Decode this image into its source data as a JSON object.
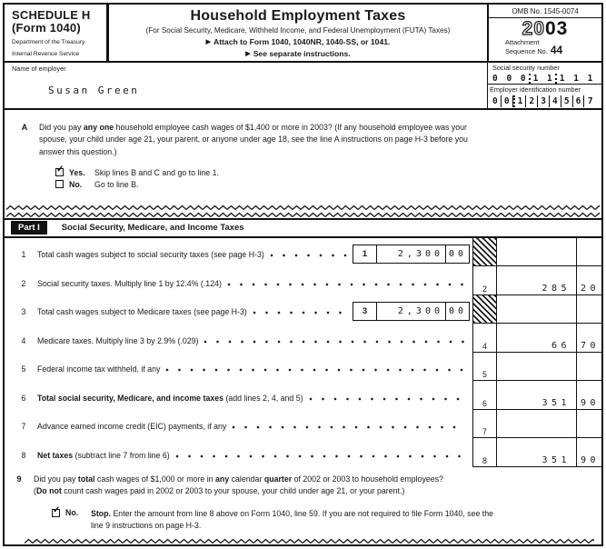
{
  "header": {
    "schedule": "SCHEDULE H",
    "form": "(Form 1040)",
    "dept1": "Department of the Treasury",
    "dept2": "Internal Revenue Service",
    "title": "Household Employment Taxes",
    "subtitle": "(For Social Security, Medicare, Withheld Income, and Federal Unemployment (FUTA) Taxes)",
    "arrow": "▶",
    "attach": "Attach to Form 1040, 1040NR, 1040-SS, or 1041.",
    "see": "See separate instructions.",
    "omb": "OMB No. 1545-0074",
    "year_outline": "20",
    "year_bold": "03",
    "attachment": "Attachment",
    "sequence": "Sequence No.",
    "sequence_no": "44"
  },
  "employer": {
    "name_label": "Name of employer",
    "name": "Susan Green",
    "ssn_label": "Social security number",
    "ssn_groups": [
      "0 0 0",
      "1 1",
      "1 1 1 1"
    ],
    "ein_label": "Employer identification number",
    "ein_groups": [
      [
        "0",
        "0"
      ],
      [
        "1",
        "2",
        "3",
        "4",
        "5",
        "6",
        "7"
      ]
    ]
  },
  "question_a": {
    "letter": "A",
    "text": [
      {
        "t": "Did you pay "
      },
      {
        "t": "any one",
        "b": true
      },
      {
        "t": " household employee cash wages of $1,400 or more in 2003? (If any household employee was your"
      },
      {
        "br": true
      },
      {
        "t": "spouse, your child under age 21, your parent, or anyone under age 18, see the line A instructions on page H-3 before you"
      },
      {
        "br": true
      },
      {
        "t": "answer this question.)"
      }
    ],
    "options": [
      {
        "checked": true,
        "label": "Yes.",
        "text": "Skip lines B and C and go to line 1."
      },
      {
        "checked": false,
        "label": "No.",
        "text": "Go to line B."
      }
    ]
  },
  "part1": {
    "label": "Part I",
    "title": "Social Security, Medicare, and Income Taxes",
    "rows": [
      {
        "num": "1",
        "desc": [
          {
            "t": "Total cash wages subject to social security taxes (see page H-3)"
          }
        ],
        "inline": {
          "num": "1",
          "amount": "2,300",
          "cents": "00"
        },
        "right": {
          "hatch": true,
          "num": "",
          "amount": "",
          "cents": ""
        }
      },
      {
        "num": "2",
        "desc": [
          {
            "t": "Social security taxes. Multiply line 1 by 12.4% (.124)"
          }
        ],
        "right": {
          "hatch": false,
          "num": "2",
          "amount": "285",
          "cents": "20"
        }
      },
      {
        "num": "3",
        "desc": [
          {
            "t": "Total cash wages subject to Medicare taxes (see page H-3)"
          }
        ],
        "inline": {
          "num": "3",
          "amount": "2,300",
          "cents": "00"
        },
        "right": {
          "hatch": true,
          "num": "",
          "amount": "",
          "cents": ""
        }
      },
      {
        "num": "4",
        "desc": [
          {
            "t": "Medicare taxes. Multiply line 3 by 2.9% (.029)"
          }
        ],
        "right": {
          "hatch": false,
          "num": "4",
          "amount": "66",
          "cents": "70"
        }
      },
      {
        "num": "5",
        "desc": [
          {
            "t": "Federal income tax withheld, if any"
          }
        ],
        "right": {
          "hatch": false,
          "num": "5",
          "amount": "",
          "cents": ""
        }
      },
      {
        "num": "6",
        "desc": [
          {
            "t": "Total social security, Medicare, and income taxes",
            "b": true
          },
          {
            "t": " (add lines 2, 4, and 5)"
          }
        ],
        "right": {
          "hatch": false,
          "num": "6",
          "amount": "351",
          "cents": "90"
        }
      },
      {
        "num": "7",
        "desc": [
          {
            "t": "Advance earned income credit (EIC) payments, if any"
          }
        ],
        "right": {
          "hatch": false,
          "num": "7",
          "amount": "",
          "cents": ""
        }
      },
      {
        "num": "8",
        "desc": [
          {
            "t": "Net taxes",
            "b": true
          },
          {
            "t": " (subtract line 7 from line 6)"
          }
        ],
        "right": {
          "hatch": false,
          "num": "8",
          "amount": "351",
          "cents": "90"
        }
      }
    ]
  },
  "question_9": {
    "num": "9",
    "text": [
      {
        "t": "Did you pay "
      },
      {
        "t": "total",
        "b": true
      },
      {
        "t": " cash wages of $1,000 or more in "
      },
      {
        "t": "any",
        "b": true
      },
      {
        "t": " calendar "
      },
      {
        "t": "quarter",
        "b": true
      },
      {
        "t": " of 2002 or 2003 to household employees?"
      },
      {
        "br": true
      },
      {
        "t": "("
      },
      {
        "t": "Do not",
        "b": true
      },
      {
        "t": " count cash wages paid in 2002 or 2003 to your spouse, your child under age 21, or your parent.)"
      }
    ],
    "answer": {
      "checked": true,
      "label": "No.",
      "text": [
        {
          "t": "Stop.",
          "b": true
        },
        {
          "t": " Enter the amount from line 8 above on Form 1040, line 59. If you are not required to file Form 1040, see the"
        },
        {
          "br": true
        },
        {
          "t": "line 9 instructions on page H-3."
        }
      ]
    }
  },
  "check_glyph": "✓",
  "colors": {
    "ink": "#1a1a1a",
    "paper": "#ffffff"
  }
}
